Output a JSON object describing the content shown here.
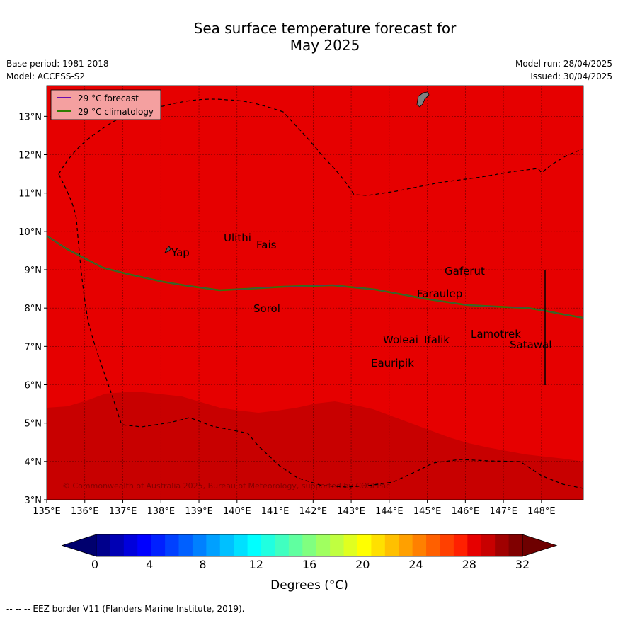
{
  "header": {
    "title_line1": "Sea surface temperature forecast for",
    "title_line2": "May 2025",
    "base_period": "Base period: 1981-2018",
    "model": "Model: ACCESS-S2",
    "model_run": "Model run: 28/04/2025",
    "issued": "Issued: 30/04/2025"
  },
  "map": {
    "lon_ticks": [
      "135°E",
      "136°E",
      "137°E",
      "138°E",
      "139°E",
      "140°E",
      "141°E",
      "142°E",
      "143°E",
      "144°E",
      "145°E",
      "146°E",
      "147°E",
      "148°E"
    ],
    "lat_ticks": [
      "3°N",
      "4°N",
      "5°N",
      "6°N",
      "7°N",
      "8°N",
      "9°N",
      "10°N",
      "11°N",
      "12°N",
      "13°N"
    ],
    "legend": [
      {
        "label": "29 °C  forecast",
        "color": "#6a0dad"
      },
      {
        "label": "29 °C  climatology",
        "color": "#2e7d00"
      }
    ],
    "place_labels": {
      "yap": "Yap",
      "ulithi": "Ulithi",
      "fais": "Fais",
      "sorol": "Sorol",
      "gaferut": "Gaferut",
      "faraulep": "Faraulep",
      "woleai": "Woleai",
      "ifalik": "Ifalik",
      "lamotrek": "Lamotrek",
      "satawal": "Satawal",
      "eauripik": "Eauripik"
    },
    "copyright": "© Commonwealth of Australia 2025, Bureau of Meteorology, supported by COSPPac",
    "colors": {
      "warm_region": "#e60000",
      "warmer_region": "#c80000",
      "land": "#808080"
    }
  },
  "colorbar": {
    "ticks": [
      "0",
      "4",
      "8",
      "12",
      "16",
      "20",
      "24",
      "28",
      "32"
    ],
    "label": "Degrees ($^\\circ$C)",
    "label_display": "Degrees (°C)",
    "colors": [
      "#00008c",
      "#0000b4",
      "#0000dc",
      "#0000ff",
      "#0020ff",
      "#0040ff",
      "#0060ff",
      "#0080ff",
      "#00a0ff",
      "#00c0ff",
      "#00e0ff",
      "#00ffff",
      "#20ffe0",
      "#40ffc0",
      "#60ffa0",
      "#80ff80",
      "#a0ff60",
      "#c0ff40",
      "#e0ff20",
      "#ffff00",
      "#ffe000",
      "#ffc000",
      "#ffa000",
      "#ff8000",
      "#ff6000",
      "#ff4000",
      "#ff2000",
      "#e60000",
      "#c80000",
      "#a00000",
      "#800000"
    ]
  },
  "footer": {
    "eez_note": "--  --  -- EEZ border V11 (Flanders Marine Institute, 2019)."
  }
}
